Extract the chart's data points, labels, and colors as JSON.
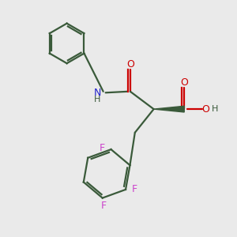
{
  "bg_color": "#eaeaea",
  "bond_color": "#3a5a3a",
  "N_color": "#2020cc",
  "O_color": "#cc0000",
  "F_color": "#cc44cc",
  "line_width": 1.6,
  "fig_size": [
    3.0,
    3.0
  ],
  "dpi": 100,
  "xlim": [
    0,
    10
  ],
  "ylim": [
    0,
    10
  ]
}
